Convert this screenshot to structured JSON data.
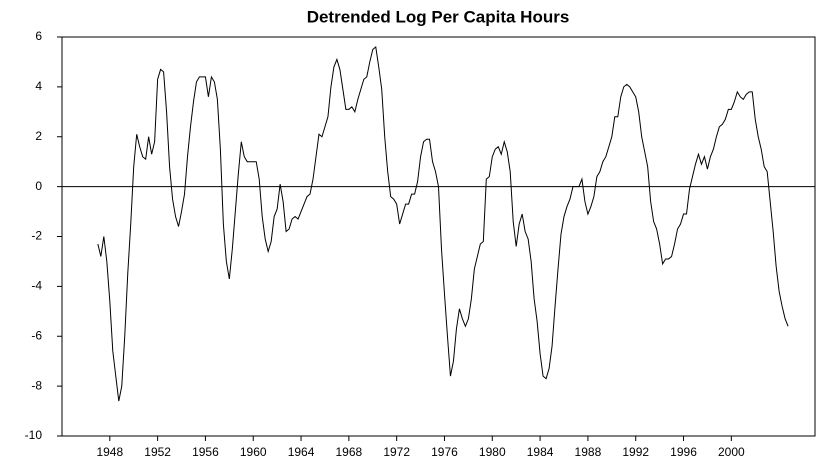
{
  "chart_data": {
    "type": "line",
    "title": "Detrended Log Per Capita Hours",
    "x": [
      1947,
      1947.25,
      1947.5,
      1947.75,
      1948,
      1948.25,
      1948.5,
      1948.75,
      1949,
      1949.25,
      1949.5,
      1949.75,
      1950,
      1950.25,
      1950.5,
      1950.75,
      1951,
      1951.25,
      1951.5,
      1951.75,
      1952,
      1952.25,
      1952.5,
      1952.75,
      1953,
      1953.25,
      1953.5,
      1953.75,
      1954,
      1954.25,
      1954.5,
      1954.75,
      1955,
      1955.25,
      1955.5,
      1955.75,
      1956,
      1956.25,
      1956.5,
      1956.75,
      1957,
      1957.25,
      1957.5,
      1957.75,
      1958,
      1958.25,
      1958.5,
      1958.75,
      1959,
      1959.25,
      1959.5,
      1959.75,
      1960,
      1960.25,
      1960.5,
      1960.75,
      1961,
      1961.25,
      1961.5,
      1961.75,
      1962,
      1962.25,
      1962.5,
      1962.75,
      1963,
      1963.25,
      1963.5,
      1963.75,
      1964,
      1964.25,
      1964.5,
      1964.75,
      1965,
      1965.25,
      1965.5,
      1965.75,
      1966,
      1966.25,
      1966.5,
      1966.75,
      1967,
      1967.25,
      1967.5,
      1967.75,
      1968,
      1968.25,
      1968.5,
      1968.75,
      1969,
      1969.25,
      1969.5,
      1969.75,
      1970,
      1970.25,
      1970.5,
      1970.75,
      1971,
      1971.25,
      1971.5,
      1971.75,
      1972,
      1972.25,
      1972.5,
      1972.75,
      1973,
      1973.25,
      1973.5,
      1973.75,
      1974,
      1974.25,
      1974.5,
      1974.75,
      1975,
      1975.25,
      1975.5,
      1975.75,
      1976,
      1976.25,
      1976.5,
      1976.75,
      1977,
      1977.25,
      1977.5,
      1977.75,
      1978,
      1978.25,
      1978.5,
      1978.75,
      1979,
      1979.25,
      1979.5,
      1979.75,
      1980,
      1980.25,
      1980.5,
      1980.75,
      1981,
      1981.25,
      1981.5,
      1981.75,
      1982,
      1982.25,
      1982.5,
      1982.75,
      1983,
      1983.25,
      1983.5,
      1983.75,
      1984,
      1984.25,
      1984.5,
      1984.75,
      1985,
      1985.25,
      1985.5,
      1985.75,
      1986,
      1986.25,
      1986.5,
      1986.75,
      1987,
      1987.25,
      1987.5,
      1987.75,
      1988,
      1988.25,
      1988.5,
      1988.75,
      1989,
      1989.25,
      1989.5,
      1989.75,
      1990,
      1990.25,
      1990.5,
      1990.75,
      1991,
      1991.25,
      1991.5,
      1991.75,
      1992,
      1992.25,
      1992.5,
      1992.75,
      1993,
      1993.25,
      1993.5,
      1993.75,
      1994,
      1994.25,
      1994.5,
      1994.75,
      1995,
      1995.25,
      1995.5,
      1995.75,
      1996,
      1996.25,
      1996.5,
      1996.75,
      1997,
      1997.25,
      1997.5,
      1997.75,
      1998,
      1998.25,
      1998.5,
      1998.75,
      1999,
      1999.25,
      1999.5,
      1999.75,
      2000,
      2000.25,
      2000.5,
      2000.75,
      2001,
      2001.25,
      2001.5,
      2001.75,
      2002,
      2002.25,
      2002.5,
      2002.75,
      2003,
      2003.25,
      2003.5,
      2003.75,
      2004,
      2004.25,
      2004.5,
      2004.75
    ],
    "series": [
      {
        "color": "#000000",
        "values": [
          -2.3,
          -2.8,
          -2.0,
          -3.0,
          -4.6,
          -6.6,
          -7.6,
          -8.6,
          -8.0,
          -6.0,
          -3.5,
          -1.5,
          0.8,
          2.1,
          1.6,
          1.2,
          1.1,
          2.0,
          1.3,
          1.8,
          4.3,
          4.7,
          4.6,
          3.0,
          0.8,
          -0.5,
          -1.2,
          -1.6,
          -1.0,
          -0.3,
          1.2,
          2.4,
          3.4,
          4.2,
          4.4,
          4.4,
          4.4,
          3.6,
          4.4,
          4.2,
          3.5,
          1.5,
          -1.5,
          -3.0,
          -3.7,
          -2.5,
          -1.0,
          0.5,
          1.8,
          1.2,
          1.0,
          1.0,
          1.0,
          1.0,
          0.3,
          -1.2,
          -2.1,
          -2.6,
          -2.2,
          -1.2,
          -0.9,
          0.1,
          -0.6,
          -1.8,
          -1.7,
          -1.3,
          -1.2,
          -1.3,
          -1.0,
          -0.7,
          -0.4,
          -0.3,
          0.3,
          1.2,
          2.1,
          2.0,
          2.4,
          2.8,
          4.0,
          4.8,
          5.1,
          4.7,
          3.9,
          3.1,
          3.1,
          3.2,
          3.0,
          3.5,
          3.9,
          4.3,
          4.4,
          5.0,
          5.5,
          5.6,
          4.8,
          3.9,
          2.0,
          0.6,
          -0.4,
          -0.5,
          -0.7,
          -1.5,
          -1.1,
          -0.7,
          -0.7,
          -0.3,
          -0.3,
          0.2,
          1.2,
          1.8,
          1.9,
          1.9,
          1.0,
          0.6,
          0.0,
          -2.5,
          -4.3,
          -6.0,
          -7.6,
          -7.0,
          -5.7,
          -4.9,
          -5.3,
          -5.6,
          -5.3,
          -4.5,
          -3.3,
          -2.8,
          -2.3,
          -2.2,
          0.3,
          0.4,
          1.2,
          1.5,
          1.6,
          1.3,
          1.8,
          1.4,
          0.6,
          -1.4,
          -2.4,
          -1.5,
          -1.1,
          -1.8,
          -2.1,
          -3.0,
          -4.5,
          -5.4,
          -6.7,
          -7.6,
          -7.7,
          -7.3,
          -6.4,
          -4.8,
          -3.3,
          -1.9,
          -1.2,
          -0.8,
          -0.5,
          0.0,
          0.0,
          0.0,
          0.3,
          -0.6,
          -1.1,
          -0.8,
          -0.4,
          0.4,
          0.6,
          1.0,
          1.2,
          1.6,
          2.0,
          2.8,
          2.8,
          3.6,
          4.0,
          4.1,
          4.0,
          3.8,
          3.6,
          3.0,
          2.0,
          1.4,
          0.8,
          -0.6,
          -1.4,
          -1.7,
          -2.3,
          -3.1,
          -2.9,
          -2.9,
          -2.8,
          -2.3,
          -1.7,
          -1.5,
          -1.1,
          -1.1,
          -0.1,
          0.4,
          0.9,
          1.3,
          0.9,
          1.2,
          0.7,
          1.2,
          1.5,
          2.0,
          2.4,
          2.5,
          2.7,
          3.1,
          3.1,
          3.4,
          3.8,
          3.6,
          3.5,
          3.7,
          3.8,
          3.8,
          2.7,
          2.0,
          1.5,
          0.8,
          0.6,
          -0.6,
          -1.8,
          -3.2,
          -4.2,
          -4.8,
          -5.3,
          -5.6
        ]
      }
    ],
    "xlim": [
      1944,
      2007
    ],
    "xticks": [
      1948,
      1952,
      1956,
      1960,
      1964,
      1968,
      1972,
      1976,
      1980,
      1984,
      1988,
      1992,
      1996,
      2000
    ],
    "ylim": [
      -10,
      6
    ],
    "yticks": [
      -10,
      -8,
      -6,
      -4,
      -2,
      0,
      2,
      4,
      6
    ],
    "zero_line": true,
    "grid": false
  }
}
